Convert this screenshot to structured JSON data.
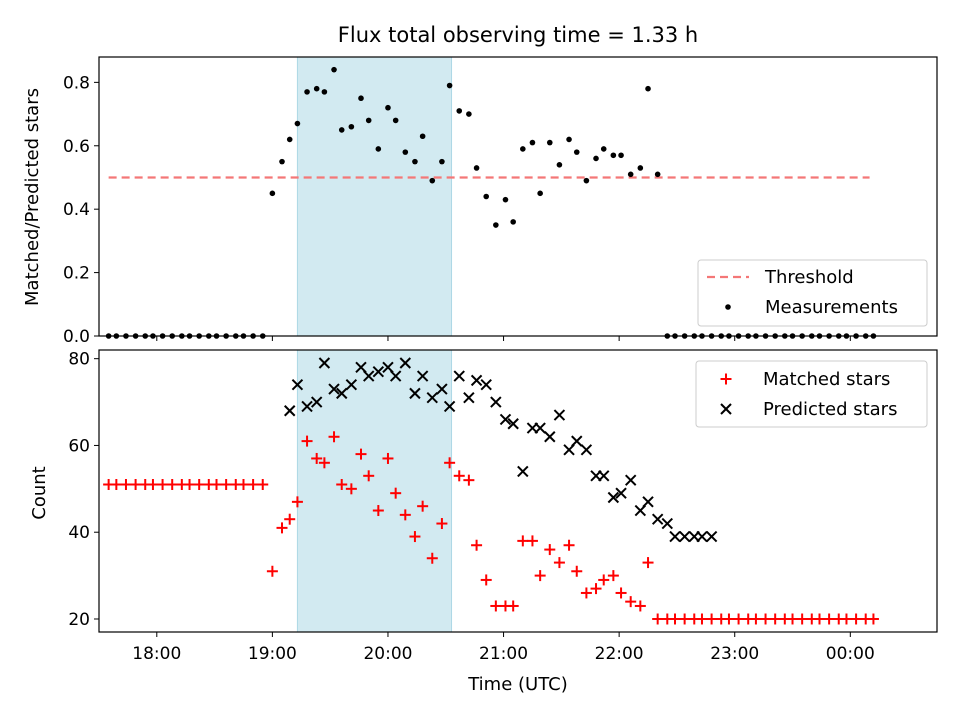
{
  "title": "Flux total observing time = 1.33 h",
  "colors": {
    "threshold": "#f47777",
    "measurements": "#000000",
    "matched": "#ff0000",
    "predicted": "#000000",
    "span": "#add8e6"
  },
  "chart_data": [
    {
      "type": "scatter",
      "panel": "top",
      "ylabel": "Matched/Predicted stars",
      "xlabel": "",
      "xlim": [
        "17:30",
        "00:45"
      ],
      "ylim": [
        0,
        0.88
      ],
      "yticks": [
        0.0,
        0.2,
        0.4,
        0.6,
        0.8
      ],
      "ytick_labels": [
        "0.0",
        "0.2",
        "0.4",
        "0.6",
        "0.8"
      ],
      "highlight_span": [
        "19:13",
        "20:33"
      ],
      "legend": [
        "Threshold",
        "Measurements"
      ],
      "legend_position": "lower-right",
      "threshold": {
        "name": "Threshold",
        "value": 0.5,
        "x_range": [
          "17:35",
          "00:10"
        ]
      },
      "measurements": {
        "name": "Measurements",
        "x": [
          "17:35",
          "17:39",
          "17:44",
          "17:49",
          "17:54",
          "17:58",
          "18:03",
          "18:08",
          "18:13",
          "18:17",
          "18:22",
          "18:27",
          "18:31",
          "18:36",
          "18:41",
          "18:45",
          "18:50",
          "18:55",
          "19:00",
          "19:05",
          "19:09",
          "19:13",
          "19:18",
          "19:23",
          "19:27",
          "19:32",
          "19:36",
          "19:41",
          "19:46",
          "19:50",
          "19:55",
          "20:00",
          "20:04",
          "20:09",
          "20:14",
          "20:18",
          "20:23",
          "20:28",
          "20:32",
          "20:37",
          "20:42",
          "20:46",
          "20:51",
          "20:56",
          "21:01",
          "21:05",
          "21:10",
          "21:15",
          "21:19",
          "21:24",
          "21:29",
          "21:34",
          "21:38",
          "21:43",
          "21:48",
          "21:52",
          "21:57",
          "22:01",
          "22:06",
          "22:11",
          "22:15",
          "22:20",
          "22:25",
          "22:29",
          "22:34",
          "22:39",
          "22:43",
          "22:48",
          "22:53",
          "22:57",
          "23:02",
          "23:07",
          "23:11",
          "23:16",
          "23:21",
          "23:26",
          "23:30",
          "23:35",
          "23:40",
          "23:44",
          "23:49",
          "23:54",
          "23:58",
          "00:03",
          "00:08",
          "00:12"
        ],
        "y": [
          0,
          0,
          0,
          0,
          0,
          0,
          0,
          0,
          0,
          0,
          0,
          0,
          0,
          0,
          0,
          0,
          0,
          0,
          0.45,
          0.55,
          0.62,
          0.67,
          0.77,
          0.78,
          0.77,
          0.84,
          0.65,
          0.66,
          0.75,
          0.68,
          0.59,
          0.72,
          0.68,
          0.58,
          0.55,
          0.63,
          0.49,
          0.55,
          0.79,
          0.71,
          0.7,
          0.53,
          0.44,
          0.35,
          0.43,
          0.36,
          0.59,
          0.61,
          0.45,
          0.61,
          0.54,
          0.62,
          0.58,
          0.49,
          0.56,
          0.59,
          0.57,
          0.57,
          0.51,
          0.53,
          0.78,
          0.51,
          0,
          0,
          0,
          0,
          0,
          0,
          0,
          0,
          0,
          0,
          0,
          0,
          0,
          0,
          0,
          0,
          0,
          0,
          0,
          0,
          0,
          0,
          0,
          0
        ]
      }
    },
    {
      "type": "scatter",
      "panel": "bottom",
      "ylabel": "Count",
      "xlabel": "Time (UTC)",
      "xlim": [
        "17:30",
        "00:45"
      ],
      "ylim": [
        17,
        82
      ],
      "yticks": [
        20,
        40,
        60,
        80
      ],
      "ytick_labels": [
        "20",
        "40",
        "60",
        "80"
      ],
      "xticks": [
        "18:00",
        "19:00",
        "20:00",
        "21:00",
        "22:00",
        "23:00",
        "00:00"
      ],
      "highlight_span": [
        "19:13",
        "20:33"
      ],
      "legend": [
        "Matched stars",
        "Predicted stars"
      ],
      "legend_position": "upper-right",
      "series": [
        {
          "name": "Matched stars",
          "marker": "+",
          "x": [
            "17:35",
            "17:39",
            "17:44",
            "17:49",
            "17:54",
            "17:58",
            "18:03",
            "18:08",
            "18:13",
            "18:17",
            "18:22",
            "18:27",
            "18:31",
            "18:36",
            "18:41",
            "18:45",
            "18:50",
            "18:55",
            "19:00",
            "19:05",
            "19:09",
            "19:13",
            "19:18",
            "19:23",
            "19:27",
            "19:32",
            "19:36",
            "19:41",
            "19:46",
            "19:50",
            "19:55",
            "20:00",
            "20:04",
            "20:09",
            "20:14",
            "20:18",
            "20:23",
            "20:28",
            "20:32",
            "20:37",
            "20:42",
            "20:46",
            "20:51",
            "20:56",
            "21:01",
            "21:05",
            "21:10",
            "21:15",
            "21:19",
            "21:24",
            "21:29",
            "21:34",
            "21:38",
            "21:43",
            "21:48",
            "21:52",
            "21:57",
            "22:01",
            "22:06",
            "22:11",
            "22:15",
            "22:20",
            "22:25",
            "22:29",
            "22:34",
            "22:39",
            "22:43",
            "22:48",
            "22:53",
            "22:57",
            "23:02",
            "23:07",
            "23:11",
            "23:16",
            "23:21",
            "23:26",
            "23:30",
            "23:35",
            "23:40",
            "23:44",
            "23:49",
            "23:54",
            "23:58",
            "00:03",
            "00:08",
            "00:12"
          ],
          "y": [
            51,
            51,
            51,
            51,
            51,
            51,
            51,
            51,
            51,
            51,
            51,
            51,
            51,
            51,
            51,
            51,
            51,
            51,
            31,
            41,
            43,
            47,
            61,
            57,
            56,
            62,
            51,
            50,
            58,
            53,
            45,
            57,
            49,
            44,
            39,
            46,
            34,
            42,
            56,
            53,
            52,
            37,
            29,
            23,
            23,
            23,
            38,
            38,
            30,
            36,
            33,
            37,
            31,
            26,
            27,
            29,
            30,
            26,
            24,
            23,
            33,
            20,
            20,
            20,
            20,
            20,
            20,
            20,
            20,
            20,
            20,
            20,
            20,
            20,
            20,
            20,
            20,
            20,
            20,
            20,
            20,
            20,
            20,
            20,
            20,
            20
          ]
        },
        {
          "name": "Predicted stars",
          "marker": "x",
          "x": [
            "19:09",
            "19:13",
            "19:18",
            "19:23",
            "19:27",
            "19:32",
            "19:36",
            "19:41",
            "19:46",
            "19:50",
            "19:55",
            "20:00",
            "20:04",
            "20:09",
            "20:14",
            "20:18",
            "20:23",
            "20:28",
            "20:32",
            "20:37",
            "20:42",
            "20:46",
            "20:51",
            "20:56",
            "21:01",
            "21:05",
            "21:10",
            "21:15",
            "21:19",
            "21:24",
            "21:29",
            "21:34",
            "21:38",
            "21:43",
            "21:48",
            "21:52",
            "21:57",
            "22:01",
            "22:06",
            "22:11",
            "22:15",
            "22:20",
            "22:25",
            "22:29",
            "22:34",
            "22:39",
            "22:43",
            "22:48"
          ],
          "y": [
            68,
            74,
            69,
            70,
            79,
            73,
            72,
            74,
            78,
            76,
            77,
            78,
            76,
            79,
            72,
            76,
            71,
            73,
            69,
            76,
            71,
            75,
            74,
            70,
            66,
            65,
            54,
            64,
            64,
            62,
            67,
            59,
            61,
            59,
            53,
            53,
            48,
            49,
            52,
            45,
            47,
            43,
            42,
            39,
            39,
            39,
            39,
            39
          ]
        }
      ]
    }
  ]
}
